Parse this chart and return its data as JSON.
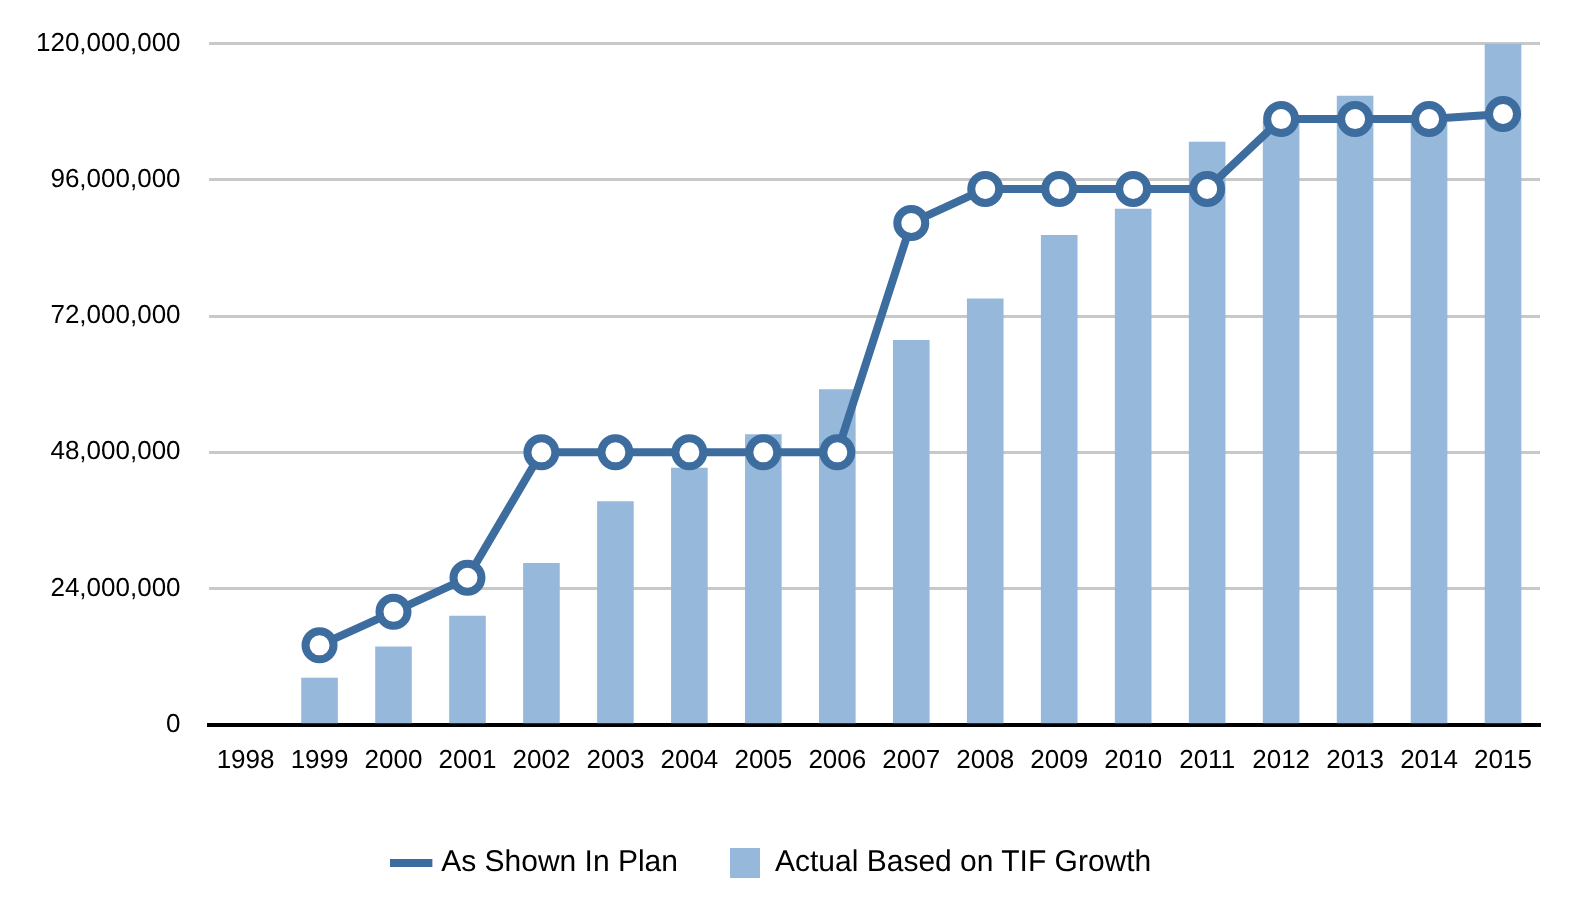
{
  "chart_data": {
    "type": "bar",
    "categories": [
      "1998",
      "1999",
      "2000",
      "2001",
      "2002",
      "2003",
      "2004",
      "2005",
      "2006",
      "2007",
      "2008",
      "2009",
      "2010",
      "2011",
      "2012",
      "2013",
      "2014",
      "2015"
    ],
    "series": [
      {
        "name": "As Shown In Plan",
        "type": "line",
        "color": "#3d6c9e",
        "marker": "circle",
        "values": [
          null,
          14000000,
          19900000,
          25900000,
          48000000,
          48000000,
          48000000,
          48000000,
          48000000,
          88400000,
          94400000,
          94400000,
          94400000,
          94400000,
          106700000,
          106700000,
          106700000,
          107600000
        ]
      },
      {
        "name": "Actual Based on TIF Growth",
        "color": "#95b8db",
        "values": [
          null,
          8300000,
          13800000,
          19200000,
          28500000,
          39400000,
          45300000,
          51200000,
          59100000,
          67800000,
          75100000,
          86300000,
          90900000,
          102700000,
          106400000,
          110800000,
          106200000,
          120000000
        ]
      }
    ],
    "ylim": [
      0,
      120000000
    ],
    "yticks": [
      {
        "value": 0,
        "label": "0"
      },
      {
        "value": 24000000,
        "label": "24,000,000"
      },
      {
        "value": 48000000,
        "label": "48,000,000"
      },
      {
        "value": 72000000,
        "label": "72,000,000"
      },
      {
        "value": 96000000,
        "label": "96,000,000"
      },
      {
        "value": 120000000,
        "label": "120,000,000"
      }
    ],
    "grid": "y",
    "legend": "bottom"
  }
}
